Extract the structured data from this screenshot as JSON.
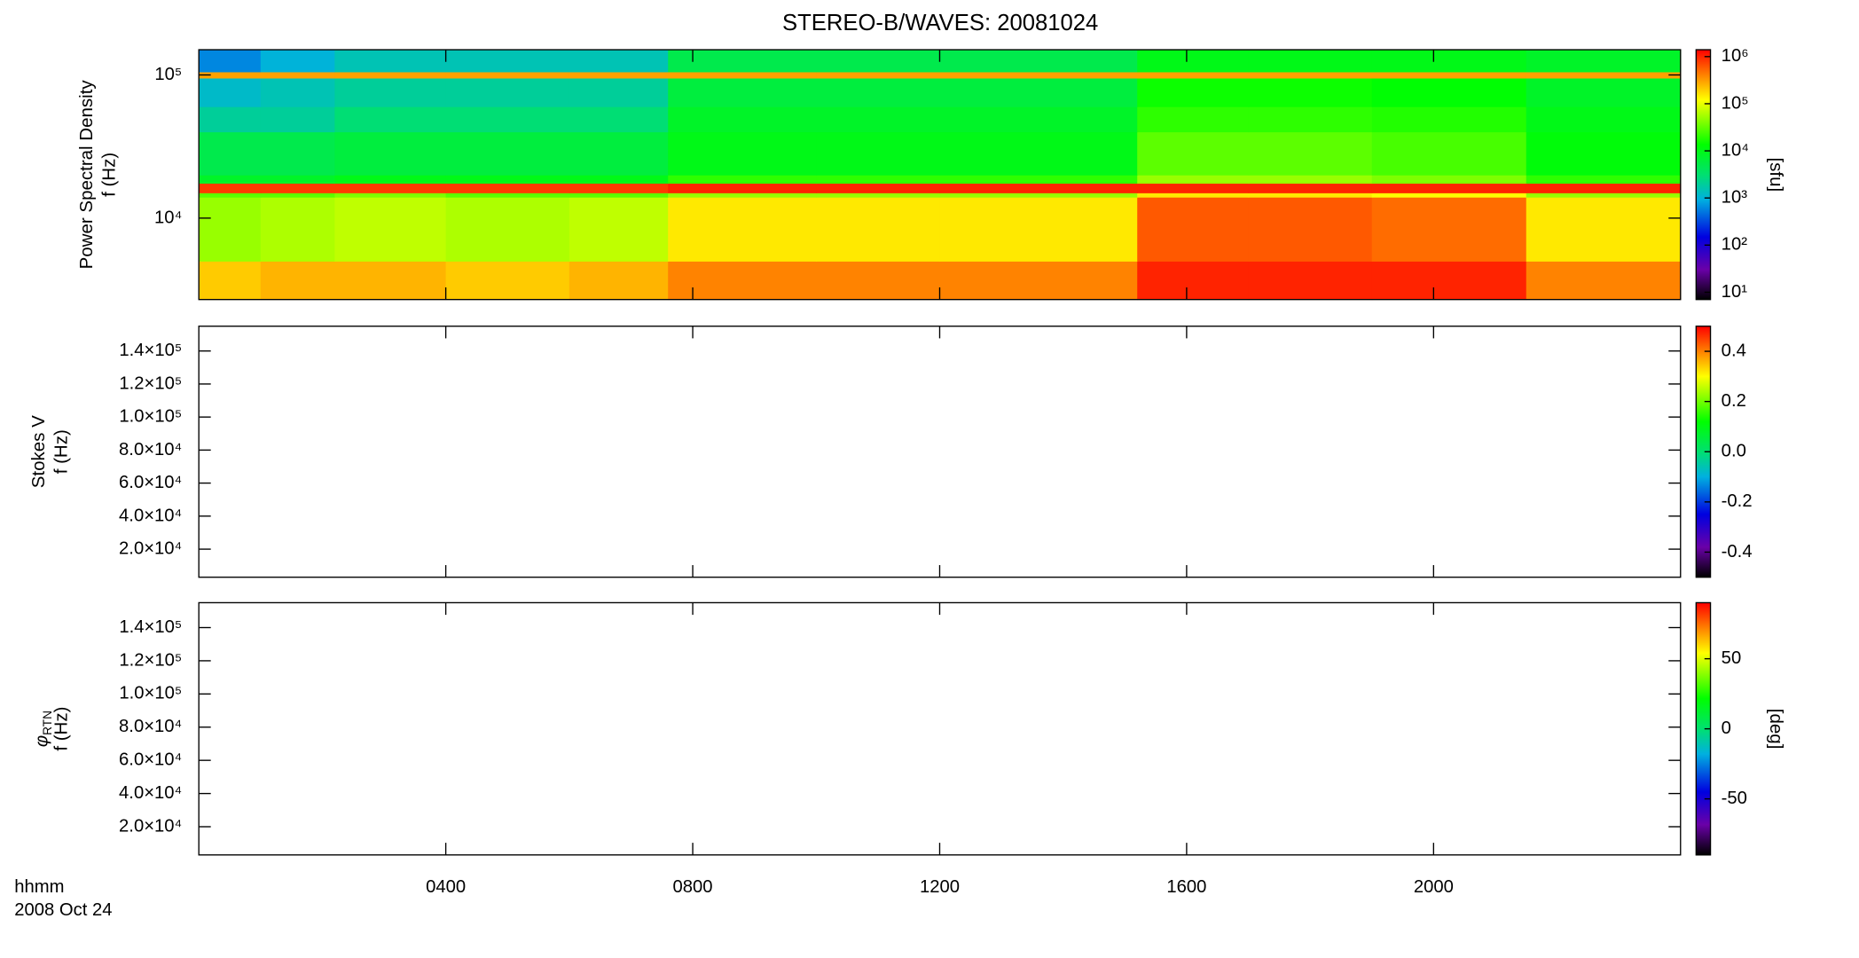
{
  "chart_data": [
    {
      "type": "heatmap",
      "title": "STEREO-B/WAVES: 20081024",
      "ylabel": "Power Spectral Density",
      "ylabel2": "f (Hz)",
      "xlim": [
        0,
        24
      ],
      "xticks": [
        4,
        8,
        12,
        16,
        20
      ],
      "ylim": [
        2700,
        150000
      ],
      "yscale": "log",
      "yticks": [
        {
          "value": 10000,
          "label": "10⁴"
        },
        {
          "value": 100000,
          "label": "10⁵"
        }
      ],
      "x_edges": [
        0,
        1,
        2.2,
        4,
        6,
        7.6,
        10,
        12,
        15.2,
        17,
        19,
        21.5,
        24
      ],
      "y_edges": [
        2700,
        5000,
        14000,
        15000,
        17500,
        20000,
        40000,
        60000,
        95000,
        105000,
        150000
      ],
      "z": [
        [
          200000,
          250000,
          250000,
          200000,
          250000,
          400000,
          400000,
          400000,
          1000000,
          1000000,
          1000000,
          400000
        ],
        [
          50000,
          60000,
          70000,
          60000,
          70000,
          150000,
          150000,
          150000,
          600000,
          600000,
          500000,
          150000
        ],
        [
          30000,
          30000,
          40000,
          30000,
          30000,
          50000,
          50000,
          50000,
          150000,
          150000,
          120000,
          50000
        ],
        [
          800000,
          800000,
          800000,
          800000,
          800000,
          1000000,
          1000000,
          1000000,
          1000000,
          1000000,
          1000000,
          1000000
        ],
        [
          8000,
          8000,
          10000,
          10000,
          10000,
          20000,
          20000,
          20000,
          50000,
          50000,
          40000,
          20000
        ],
        [
          5000,
          5000,
          6000,
          6000,
          6000,
          10000,
          10000,
          10000,
          30000,
          30000,
          25000,
          12000
        ],
        [
          2000,
          2000,
          3000,
          3000,
          3000,
          8000,
          8000,
          8000,
          20000,
          20000,
          18000,
          10000
        ],
        [
          1200,
          1500,
          2000,
          2000,
          2000,
          6000,
          6000,
          6000,
          15000,
          15000,
          13000,
          8000
        ],
        [
          300000,
          300000,
          300000,
          300000,
          300000,
          300000,
          300000,
          300000,
          300000,
          300000,
          300000,
          300000
        ],
        [
          600,
          1000,
          1500,
          1500,
          1500,
          5000,
          5000,
          5000,
          10000,
          10000,
          10000,
          8000
        ]
      ],
      "zlim": [
        7,
        1400000
      ],
      "zscale": "log",
      "zticks": [
        {
          "value": 10,
          "label": "10¹"
        },
        {
          "value": 100,
          "label": "10²"
        },
        {
          "value": 1000,
          "label": "10³"
        },
        {
          "value": 10000,
          "label": "10⁴"
        },
        {
          "value": 100000,
          "label": "10⁵"
        },
        {
          "value": 1000000,
          "label": "10⁶"
        }
      ],
      "zlabel": "[sfu]",
      "colorscale": [
        [
          0,
          "#000000"
        ],
        [
          0.12,
          "#6a00a8"
        ],
        [
          0.25,
          "#0000e0"
        ],
        [
          0.4,
          "#00b0e0"
        ],
        [
          0.5,
          "#00e070"
        ],
        [
          0.62,
          "#00ff00"
        ],
        [
          0.8,
          "#ffff00"
        ],
        [
          0.9,
          "#ff8000"
        ],
        [
          1,
          "#ff0000"
        ]
      ]
    },
    {
      "type": "heatmap",
      "ylabel": "Stokes V",
      "ylabel2": "f (Hz)",
      "xlim": [
        0,
        24
      ],
      "xticks": [
        4,
        8,
        12,
        16,
        20
      ],
      "ylim": [
        3000,
        155000
      ],
      "yscale": "linear",
      "yticks": [
        {
          "value": 20000,
          "label": "2.0×10⁴"
        },
        {
          "value": 40000,
          "label": "4.0×10⁴"
        },
        {
          "value": 60000,
          "label": "6.0×10⁴"
        },
        {
          "value": 80000,
          "label": "8.0×10⁴"
        },
        {
          "value": 100000,
          "label": "1.0×10⁵"
        },
        {
          "value": 120000,
          "label": "1.2×10⁵"
        },
        {
          "value": 140000,
          "label": "1.4×10⁵"
        }
      ],
      "zlim": [
        -0.5,
        0.5
      ],
      "zscale": "linear",
      "zticks": [
        -0.4,
        -0.2,
        {
          "value": 0,
          "label": "0.0"
        },
        0.2,
        0.4
      ],
      "colorscale": [
        [
          0,
          "#000000"
        ],
        [
          0.12,
          "#6a00a8"
        ],
        [
          0.25,
          "#0000e0"
        ],
        [
          0.4,
          "#00b0e0"
        ],
        [
          0.5,
          "#00e070"
        ],
        [
          0.62,
          "#00ff00"
        ],
        [
          0.8,
          "#ffff00"
        ],
        [
          0.9,
          "#ff8000"
        ],
        [
          1,
          "#ff0000"
        ]
      ]
    },
    {
      "type": "heatmap",
      "ylabel_symbol": "φ",
      "ylabel_subscript": "RTN",
      "ylabel2": "f (Hz)",
      "xlim": [
        0,
        24
      ],
      "xticks": [
        {
          "value": 4,
          "label": "0400"
        },
        {
          "value": 8,
          "label": "0800"
        },
        {
          "value": 12,
          "label": "1200"
        },
        {
          "value": 16,
          "label": "1600"
        },
        {
          "value": 20,
          "label": "2000"
        }
      ],
      "xlabel": "hhmm",
      "xlabel_date": "2008 Oct 24",
      "ylim": [
        3000,
        155000
      ],
      "yscale": "linear",
      "yticks": [
        {
          "value": 20000,
          "label": "2.0×10⁴"
        },
        {
          "value": 40000,
          "label": "4.0×10⁴"
        },
        {
          "value": 60000,
          "label": "6.0×10⁴"
        },
        {
          "value": 80000,
          "label": "8.0×10⁴"
        },
        {
          "value": 100000,
          "label": "1.0×10⁵"
        },
        {
          "value": 120000,
          "label": "1.2×10⁵"
        },
        {
          "value": 140000,
          "label": "1.4×10⁵"
        }
      ],
      "zlim": [
        -90,
        90
      ],
      "zscale": "linear",
      "zticks": [
        -50,
        0,
        50
      ],
      "zlabel": "[deg]",
      "colorscale": [
        [
          0,
          "#000000"
        ],
        [
          0.12,
          "#6a00a8"
        ],
        [
          0.25,
          "#0000e0"
        ],
        [
          0.4,
          "#00b0e0"
        ],
        [
          0.5,
          "#00e070"
        ],
        [
          0.62,
          "#00ff00"
        ],
        [
          0.8,
          "#ffff00"
        ],
        [
          0.9,
          "#ff8000"
        ],
        [
          1,
          "#ff0000"
        ]
      ]
    }
  ]
}
